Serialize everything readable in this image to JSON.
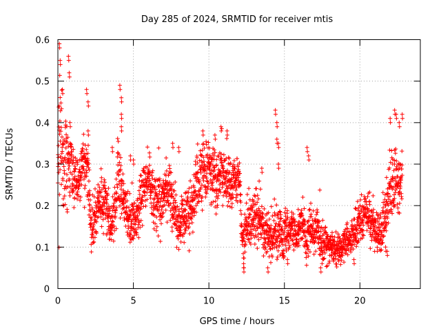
{
  "chart_data": {
    "type": "scatter",
    "title": "Day 285 of 2024, SRMTID for receiver mtis",
    "xlabel": "GPS time / hours",
    "ylabel": "SRMTID / TECUs",
    "xlim": [
      0,
      24
    ],
    "ylim": [
      0,
      0.6
    ],
    "xticks": [
      0,
      5,
      10,
      15,
      20
    ],
    "yticks": [
      0,
      0.1,
      0.2,
      0.3,
      0.4,
      0.5,
      0.6
    ],
    "grid": true,
    "legend": "none",
    "marker": "plus",
    "color": "#ff0000",
    "series": [
      {
        "name": "SRMTID",
        "envelope_x": [
          0.0,
          0.2,
          0.5,
          0.8,
          1.0,
          1.5,
          2.0,
          2.2,
          2.5,
          3.0,
          3.5,
          4.0,
          4.5,
          5.0,
          5.5,
          6.0,
          6.5,
          7.0,
          7.5,
          8.0,
          8.5,
          9.0,
          9.5,
          10.0,
          10.5,
          11.0,
          11.5,
          12.0,
          12.2,
          12.5,
          13.0,
          13.5,
          14.0,
          14.5,
          15.0,
          15.5,
          16.0,
          16.5,
          17.0,
          17.5,
          18.0,
          18.5,
          19.0,
          19.5,
          20.0,
          20.5,
          21.0,
          21.5,
          22.0,
          22.5,
          22.8
        ],
        "envelope_center": [
          0.3,
          0.33,
          0.28,
          0.3,
          0.26,
          0.27,
          0.3,
          0.14,
          0.18,
          0.22,
          0.15,
          0.26,
          0.2,
          0.15,
          0.21,
          0.28,
          0.19,
          0.21,
          0.25,
          0.15,
          0.19,
          0.22,
          0.26,
          0.28,
          0.26,
          0.28,
          0.26,
          0.27,
          0.12,
          0.16,
          0.17,
          0.16,
          0.13,
          0.15,
          0.13,
          0.13,
          0.14,
          0.13,
          0.14,
          0.12,
          0.1,
          0.09,
          0.1,
          0.13,
          0.15,
          0.2,
          0.14,
          0.14,
          0.26,
          0.27,
          0.26
        ],
        "envelope_spread": [
          0.12,
          0.1,
          0.08,
          0.07,
          0.05,
          0.04,
          0.06,
          0.04,
          0.05,
          0.05,
          0.04,
          0.06,
          0.06,
          0.05,
          0.06,
          0.05,
          0.05,
          0.05,
          0.05,
          0.05,
          0.05,
          0.05,
          0.06,
          0.06,
          0.06,
          0.05,
          0.05,
          0.04,
          0.04,
          0.05,
          0.05,
          0.05,
          0.04,
          0.05,
          0.04,
          0.04,
          0.04,
          0.04,
          0.04,
          0.04,
          0.03,
          0.03,
          0.03,
          0.03,
          0.04,
          0.04,
          0.04,
          0.05,
          0.07,
          0.06,
          0.05
        ],
        "peaks": [
          [
            0.1,
            0.59
          ],
          [
            0.15,
            0.55
          ],
          [
            0.3,
            0.48
          ],
          [
            0.7,
            0.56
          ],
          [
            0.75,
            0.52
          ],
          [
            0.8,
            0.4
          ],
          [
            1.9,
            0.48
          ],
          [
            2.0,
            0.45
          ],
          [
            2.0,
            0.38
          ],
          [
            3.6,
            0.34
          ],
          [
            4.1,
            0.49
          ],
          [
            4.2,
            0.46
          ],
          [
            4.2,
            0.42
          ],
          [
            4.2,
            0.39
          ],
          [
            4.8,
            0.32
          ],
          [
            5.0,
            0.31
          ],
          [
            7.6,
            0.35
          ],
          [
            8.0,
            0.34
          ],
          [
            9.6,
            0.38
          ],
          [
            10.4,
            0.37
          ],
          [
            10.8,
            0.39
          ],
          [
            11.2,
            0.38
          ],
          [
            12.3,
            0.06
          ],
          [
            12.3,
            0.05
          ],
          [
            13.5,
            0.29
          ],
          [
            14.4,
            0.43
          ],
          [
            14.5,
            0.4
          ],
          [
            14.5,
            0.36
          ],
          [
            14.6,
            0.35
          ],
          [
            14.6,
            0.3
          ],
          [
            16.5,
            0.34
          ],
          [
            16.6,
            0.32
          ],
          [
            13.9,
            0.05
          ],
          [
            15.2,
            0.07
          ],
          [
            17.4,
            0.05
          ],
          [
            19.6,
            0.07
          ],
          [
            22.3,
            0.43
          ],
          [
            22.4,
            0.42
          ],
          [
            22.0,
            0.41
          ],
          [
            22.6,
            0.4
          ],
          [
            22.8,
            0.42
          ],
          [
            21.7,
            0.1
          ],
          [
            21.8,
            0.09
          ]
        ]
      }
    ]
  }
}
